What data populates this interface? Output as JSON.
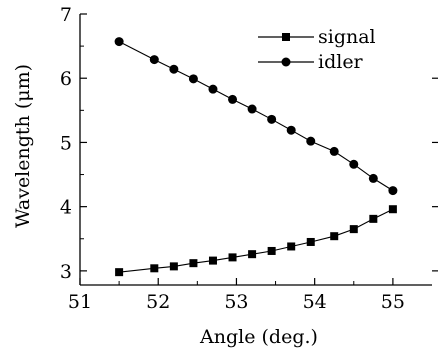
{
  "chart_data": {
    "type": "line",
    "xlabel": "Angle (deg.)",
    "ylabel": "Wavelength (μm)",
    "xlim": [
      51,
      55.5
    ],
    "ylim": [
      2.78,
      7
    ],
    "xticks": [
      51,
      52,
      53,
      54,
      55
    ],
    "yticks": [
      3,
      4,
      5,
      6,
      7
    ],
    "grid": false,
    "legend_position": "top-right",
    "series": [
      {
        "name": "signal",
        "marker": "square",
        "x": [
          51.5,
          51.95,
          52.2,
          52.45,
          52.7,
          52.95,
          53.2,
          53.45,
          53.7,
          53.95,
          54.25,
          54.5,
          54.75,
          55.0
        ],
        "y": [
          2.98,
          3.04,
          3.07,
          3.12,
          3.16,
          3.21,
          3.26,
          3.31,
          3.38,
          3.45,
          3.54,
          3.65,
          3.81,
          3.96
        ]
      },
      {
        "name": "idler",
        "marker": "circle",
        "x": [
          51.5,
          51.95,
          52.2,
          52.45,
          52.7,
          52.95,
          53.2,
          53.45,
          53.7,
          53.95,
          54.25,
          54.5,
          54.75,
          55.0
        ],
        "y": [
          6.57,
          6.29,
          6.14,
          5.99,
          5.83,
          5.67,
          5.52,
          5.36,
          5.19,
          5.02,
          4.86,
          4.66,
          4.44,
          4.25
        ]
      }
    ]
  }
}
